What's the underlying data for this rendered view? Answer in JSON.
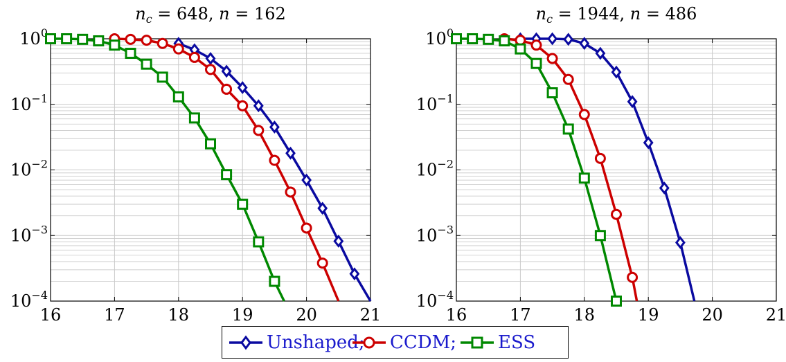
{
  "colors": {
    "unshaped": "#0a0aa0",
    "ccdm": "#cc0000",
    "ess": "#008800",
    "legend_text": "#1a1acc",
    "grid": "#c8c8c8"
  },
  "chart_data": [
    {
      "type": "line",
      "title": "n_c = 648, n = 162",
      "title_parts": {
        "a": "n",
        "a_sub": "c",
        "b": " = 648, ",
        "c": "n",
        "d": " = 162"
      },
      "xlim": [
        16,
        21
      ],
      "ylim": [
        0.0001,
        1
      ],
      "yscale": "log",
      "grid": true,
      "x_ticks": [
        "16",
        "17",
        "18",
        "19",
        "20",
        "21"
      ],
      "y_ticks": [
        {
          "base": "10",
          "exp": "0"
        },
        {
          "base": "10",
          "exp": "−1"
        },
        {
          "base": "10",
          "exp": "−2"
        },
        {
          "base": "10",
          "exp": "−3"
        },
        {
          "base": "10",
          "exp": "−4"
        }
      ],
      "series": [
        {
          "name": "Unshaped",
          "marker": "diamond",
          "x": [
            18,
            18.25,
            18.5,
            18.75,
            19,
            19.25,
            19.5,
            19.75,
            20,
            20.25,
            20.5,
            20.75,
            21
          ],
          "y": [
            0.85,
            0.68,
            0.5,
            0.32,
            0.18,
            0.095,
            0.045,
            0.018,
            0.007,
            0.0026,
            0.00082,
            0.00026,
            0.0001
          ]
        },
        {
          "name": "CCDM",
          "marker": "circle",
          "x": [
            17,
            17.25,
            17.5,
            17.75,
            18,
            18.25,
            18.5,
            18.75,
            19,
            19.25,
            19.5,
            19.75,
            20,
            20.25,
            20.5
          ],
          "y": [
            1,
            0.98,
            0.95,
            0.85,
            0.7,
            0.52,
            0.34,
            0.17,
            0.095,
            0.04,
            0.014,
            0.0046,
            0.0013,
            0.00038,
            0.0001
          ]
        },
        {
          "name": "ESS",
          "marker": "square",
          "x": [
            16,
            16.25,
            16.5,
            16.75,
            17,
            17.25,
            17.5,
            17.75,
            18,
            18.25,
            18.5,
            18.75,
            19,
            19.25,
            19.5,
            19.65
          ],
          "y": [
            1,
            1,
            0.98,
            0.93,
            0.8,
            0.6,
            0.41,
            0.26,
            0.13,
            0.062,
            0.025,
            0.0085,
            0.003,
            0.0008,
            0.0002,
            0.0001
          ]
        }
      ]
    },
    {
      "type": "line",
      "title": "n_c = 1944, n = 486",
      "title_parts": {
        "a": "n",
        "a_sub": "c",
        "b": " = 1944, ",
        "c": "n",
        "d": " = 486"
      },
      "xlim": [
        16,
        21
      ],
      "ylim": [
        0.0001,
        1
      ],
      "yscale": "log",
      "grid": true,
      "x_ticks": [
        "16",
        "17",
        "18",
        "19",
        "20",
        "21"
      ],
      "y_ticks": [
        {
          "base": "10",
          "exp": "0"
        },
        {
          "base": "10",
          "exp": "−1"
        },
        {
          "base": "10",
          "exp": "−2"
        },
        {
          "base": "10",
          "exp": "−3"
        },
        {
          "base": "10",
          "exp": "−4"
        }
      ],
      "series": [
        {
          "name": "Unshaped",
          "marker": "diamond",
          "x": [
            17,
            17.25,
            17.5,
            17.75,
            18,
            18.25,
            18.5,
            18.75,
            19,
            19.25,
            19.5,
            19.72
          ],
          "y": [
            1,
            1,
            1,
            0.98,
            0.85,
            0.6,
            0.31,
            0.11,
            0.026,
            0.0053,
            0.00078,
            0.0001
          ]
        },
        {
          "name": "CCDM",
          "marker": "circle",
          "x": [
            16.75,
            17,
            17.25,
            17.5,
            17.75,
            18,
            18.25,
            18.5,
            18.75,
            18.82
          ],
          "y": [
            1,
            0.95,
            0.8,
            0.5,
            0.24,
            0.07,
            0.015,
            0.0021,
            0.00023,
            0.0001
          ]
        },
        {
          "name": "ESS",
          "marker": "square",
          "x": [
            16,
            16.25,
            16.5,
            16.75,
            17,
            17.25,
            17.5,
            17.75,
            18,
            18.25,
            18.5
          ],
          "y": [
            1,
            1,
            0.98,
            0.93,
            0.7,
            0.42,
            0.15,
            0.042,
            0.0075,
            0.001,
            0.0001
          ]
        }
      ]
    }
  ],
  "legend": {
    "items": [
      {
        "label": "Unshaped;",
        "series": "unshaped",
        "marker": "diamond"
      },
      {
        "label": "CCDM;",
        "series": "ccdm",
        "marker": "circle"
      },
      {
        "label": "ESS",
        "series": "ess",
        "marker": "square"
      }
    ]
  }
}
